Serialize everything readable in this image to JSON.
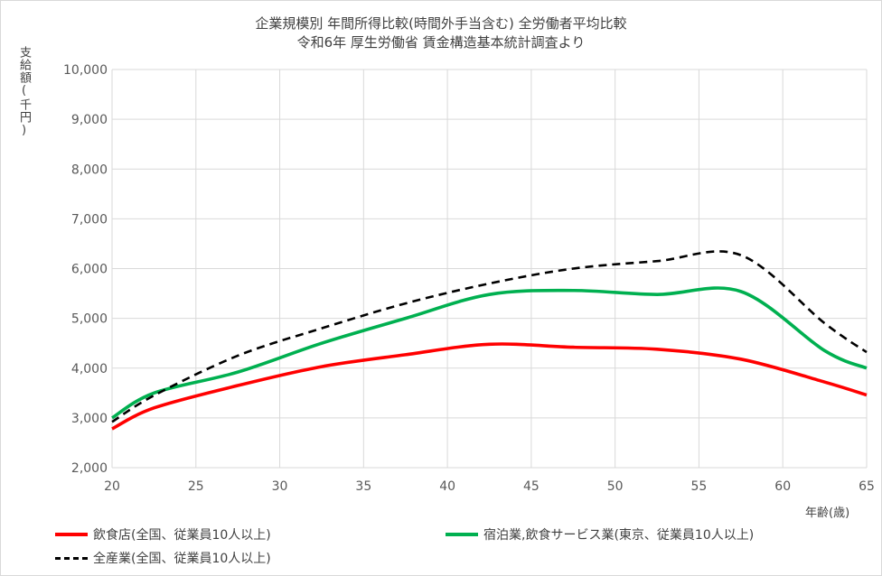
{
  "chart_data": {
    "type": "line",
    "title": "企業規模別  年間所得比較(時間外手当含む)  全労働者平均比較",
    "subtitle": "令和6年  厚生労働省  賃金構造基本統計調査より",
    "ylabel": "支給額(千円)",
    "xlabel": "年齢(歳)",
    "xlim": [
      20,
      65
    ],
    "ylim": [
      2000,
      10000
    ],
    "x_ticks": [
      20,
      25,
      30,
      35,
      40,
      45,
      50,
      55,
      60,
      65
    ],
    "y_ticks": [
      2000,
      3000,
      4000,
      5000,
      6000,
      7000,
      8000,
      9000,
      10000
    ],
    "y_tick_labels": [
      "2,000",
      "3,000",
      "4,000",
      "5,000",
      "6,000",
      "7,000",
      "8,000",
      "9,000",
      "10,000"
    ],
    "grid": true,
    "legend_position": "bottom",
    "series": [
      {
        "name": "飲食店(全国、従業員10人以上)",
        "color": "#ff0000",
        "style": "solid",
        "x": [
          20,
          22.5,
          27.5,
          32.5,
          37.5,
          42.5,
          47.5,
          52.5,
          57.5,
          62.5,
          65
        ],
        "values": [
          2780,
          3200,
          3650,
          4030,
          4270,
          4480,
          4420,
          4380,
          4180,
          3720,
          3460
        ]
      },
      {
        "name": "宿泊業,飲食サービス業(東京、従業員10人以上)",
        "color": "#00b050",
        "style": "solid",
        "x": [
          20,
          22.5,
          27.5,
          32.5,
          37.5,
          42.5,
          47.5,
          52.5,
          57.5,
          62.5,
          65
        ],
        "values": [
          3000,
          3500,
          3920,
          4500,
          5000,
          5480,
          5560,
          5480,
          5540,
          4350,
          4000
        ]
      },
      {
        "name": "全産業(全国、従業員10人以上)",
        "color": "#000000",
        "style": "dashed",
        "x": [
          20,
          22.5,
          27.5,
          32.5,
          37.5,
          42.5,
          47.5,
          52.5,
          57.5,
          62.5,
          65
        ],
        "values": [
          2920,
          3450,
          4250,
          4800,
          5300,
          5700,
          6000,
          6150,
          6270,
          4900,
          4320
        ]
      }
    ]
  }
}
